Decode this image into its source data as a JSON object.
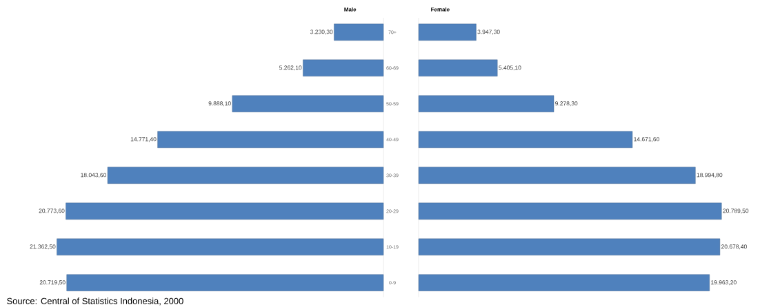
{
  "chart_data": [
    {
      "type": "bar",
      "orientation": "horizontal",
      "title": "Male",
      "categories": [
        "70+",
        "60-69",
        "50-59",
        "40-49",
        "30-39",
        "20-29",
        "10-19",
        "0-9"
      ],
      "values": [
        3230.3,
        5262.1,
        9888.1,
        14771.4,
        18043.6,
        20773.6,
        21362.5,
        20719.5
      ],
      "value_labels": [
        "3.230,30",
        "5.262,10",
        "9.888,10",
        "14.771,40",
        "18.043,60",
        "20.773,60",
        "21.362,50",
        "20.719,50"
      ],
      "color": "#4f81bd",
      "tick_labels": "y",
      "annotations": [
        "Source: Central of Statistics Indonesia, 2000"
      ]
    },
    {
      "type": "bar",
      "orientation": "horizontal",
      "title": "Female",
      "categories": [
        null,
        null,
        null,
        null,
        null,
        null,
        null,
        null
      ],
      "values": [
        3947.3,
        5405.1,
        9278.3,
        14671.6,
        18994.8,
        20789.5,
        20678.4,
        19963.2
      ],
      "value_labels": [
        "3.947,30",
        "5.405,10",
        "9.278,30",
        "14.671,60",
        "18.994,80",
        "20.789,50",
        "20.678,40",
        "19.963,20"
      ],
      "color": "#4f81bd"
    }
  ]
}
